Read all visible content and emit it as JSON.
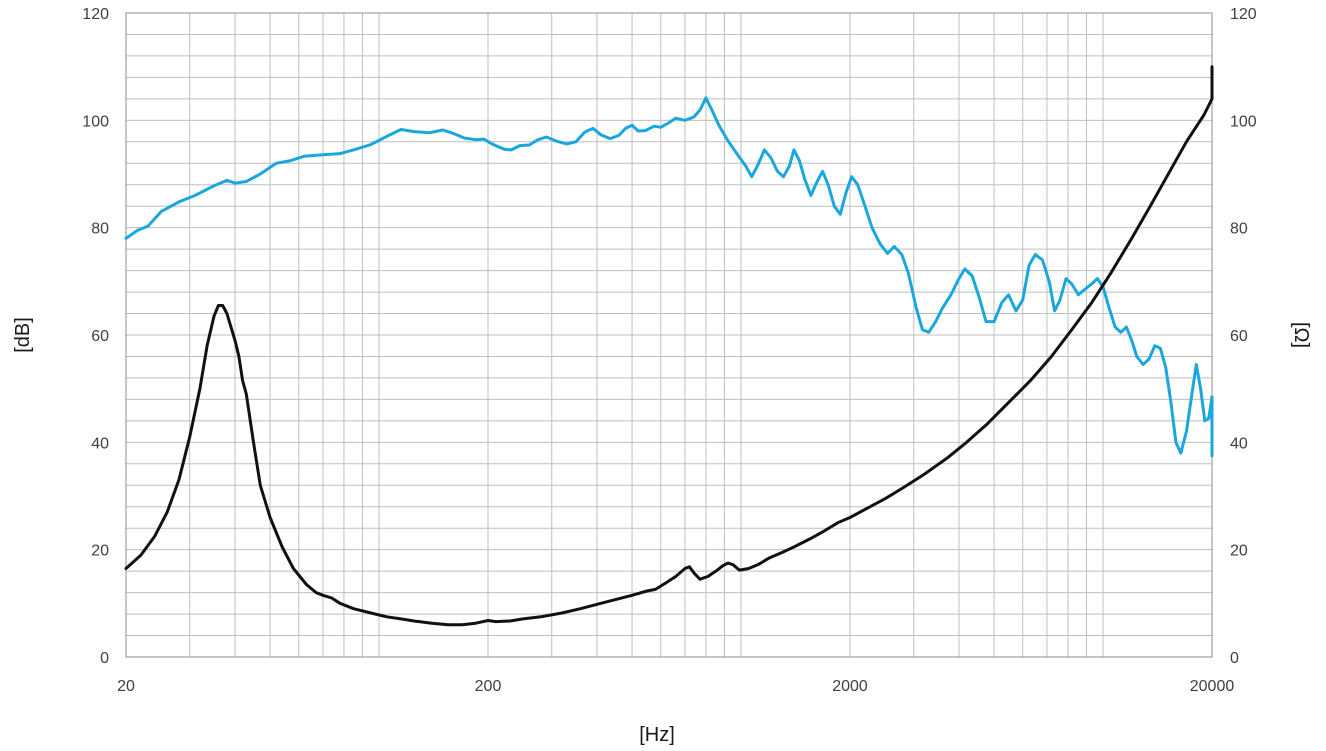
{
  "chart_data": {
    "type": "line",
    "title": "",
    "xlabel": "[Hz]",
    "ylabel_left": "[dB]",
    "ylabel_right": "[Ω]",
    "x_scale": "log",
    "xlim": [
      20,
      20000
    ],
    "ylim_left": [
      0,
      120
    ],
    "ylim_right": [
      0,
      120
    ],
    "x_ticks": [
      20,
      200,
      2000,
      20000
    ],
    "x_tick_labels": [
      "20",
      "200",
      "2000",
      "20000"
    ],
    "y_ticks": [
      0,
      20,
      40,
      60,
      80,
      100,
      120
    ],
    "y_tick_labels": [
      "0",
      "20",
      "40",
      "60",
      "80",
      "100",
      "120"
    ],
    "grid": true,
    "legend": "none",
    "colors": {
      "spl": "#1AA7DD",
      "impedance": "#111111",
      "grid": "#BFBFBF",
      "frame": "#8C8C8C"
    },
    "series": [
      {
        "axis": "left",
        "color": "#1AA7DD",
        "points": [
          [
            20,
            78
          ],
          [
            21.5,
            79.5
          ],
          [
            23,
            80.3
          ],
          [
            25,
            83
          ],
          [
            28,
            84.8
          ],
          [
            31,
            86
          ],
          [
            35,
            87.8
          ],
          [
            38,
            88.8
          ],
          [
            40,
            88.3
          ],
          [
            43,
            88.6
          ],
          [
            47,
            90
          ],
          [
            52,
            92
          ],
          [
            57,
            92.5
          ],
          [
            62,
            93.3
          ],
          [
            70,
            93.6
          ],
          [
            78,
            93.8
          ],
          [
            85,
            94.5
          ],
          [
            95,
            95.5
          ],
          [
            105,
            97
          ],
          [
            115,
            98.3
          ],
          [
            125,
            97.9
          ],
          [
            138,
            97.7
          ],
          [
            150,
            98.2
          ],
          [
            160,
            97.6
          ],
          [
            172,
            96.7
          ],
          [
            185,
            96.4
          ],
          [
            195,
            96.5
          ],
          [
            205,
            95.6
          ],
          [
            215,
            95
          ],
          [
            222,
            94.6
          ],
          [
            232,
            94.5
          ],
          [
            245,
            95.3
          ],
          [
            260,
            95.4
          ],
          [
            275,
            96.4
          ],
          [
            290,
            96.9
          ],
          [
            310,
            96.1
          ],
          [
            330,
            95.6
          ],
          [
            350,
            96
          ],
          [
            370,
            97.8
          ],
          [
            390,
            98.5
          ],
          [
            410,
            97.3
          ],
          [
            435,
            96.6
          ],
          [
            460,
            97.2
          ],
          [
            480,
            98.5
          ],
          [
            500,
            99.1
          ],
          [
            520,
            98
          ],
          [
            545,
            98.1
          ],
          [
            575,
            98.9
          ],
          [
            600,
            98.7
          ],
          [
            630,
            99.5
          ],
          [
            660,
            100.4
          ],
          [
            700,
            100
          ],
          [
            740,
            100.6
          ],
          [
            770,
            101.9
          ],
          [
            800,
            104.2
          ],
          [
            830,
            102
          ],
          [
            870,
            99
          ],
          [
            920,
            96.2
          ],
          [
            980,
            93.5
          ],
          [
            1030,
            91.5
          ],
          [
            1070,
            89.5
          ],
          [
            1110,
            91.5
          ],
          [
            1160,
            94.5
          ],
          [
            1210,
            93
          ],
          [
            1260,
            90.5
          ],
          [
            1310,
            89.5
          ],
          [
            1360,
            91.5
          ],
          [
            1400,
            94.5
          ],
          [
            1450,
            92.5
          ],
          [
            1500,
            89
          ],
          [
            1560,
            86
          ],
          [
            1620,
            88.5
          ],
          [
            1680,
            90.5
          ],
          [
            1740,
            88
          ],
          [
            1810,
            84
          ],
          [
            1880,
            82.5
          ],
          [
            1950,
            86.5
          ],
          [
            2020,
            89.5
          ],
          [
            2100,
            88
          ],
          [
            2200,
            84
          ],
          [
            2300,
            80
          ],
          [
            2420,
            77
          ],
          [
            2540,
            75.2
          ],
          [
            2650,
            76.5
          ],
          [
            2780,
            75
          ],
          [
            2900,
            71.5
          ],
          [
            3050,
            65
          ],
          [
            3170,
            61
          ],
          [
            3300,
            60.5
          ],
          [
            3450,
            62.5
          ],
          [
            3600,
            65
          ],
          [
            3800,
            67.5
          ],
          [
            4000,
            70.5
          ],
          [
            4150,
            72.3
          ],
          [
            4350,
            71
          ],
          [
            4550,
            67
          ],
          [
            4750,
            62.5
          ],
          [
            5000,
            62.5
          ],
          [
            5250,
            66
          ],
          [
            5480,
            67.5
          ],
          [
            5750,
            64.5
          ],
          [
            6000,
            66.5
          ],
          [
            6250,
            73
          ],
          [
            6500,
            75
          ],
          [
            6800,
            74
          ],
          [
            7100,
            70
          ],
          [
            7350,
            64.5
          ],
          [
            7600,
            66.5
          ],
          [
            7900,
            70.5
          ],
          [
            8200,
            69.5
          ],
          [
            8550,
            67.5
          ],
          [
            8900,
            68.5
          ],
          [
            9300,
            69.5
          ],
          [
            9650,
            70.5
          ],
          [
            10000,
            69
          ],
          [
            10400,
            65
          ],
          [
            10800,
            61.5
          ],
          [
            11200,
            60.5
          ],
          [
            11600,
            61.5
          ],
          [
            12000,
            59
          ],
          [
            12400,
            56
          ],
          [
            12900,
            54.5
          ],
          [
            13400,
            55.5
          ],
          [
            13900,
            58
          ],
          [
            14400,
            57.5
          ],
          [
            14900,
            54
          ],
          [
            15400,
            47.5
          ],
          [
            15900,
            40
          ],
          [
            16400,
            38
          ],
          [
            17000,
            42
          ],
          [
            17600,
            49
          ],
          [
            18100,
            54.5
          ],
          [
            18600,
            50
          ],
          [
            19100,
            44
          ],
          [
            19600,
            44.5
          ],
          [
            20000,
            48.5
          ],
          [
            20600,
            47.5
          ],
          [
            21100,
            43
          ],
          [
            21600,
            40
          ],
          [
            22000,
            37.5
          ]
        ]
      },
      {
        "axis": "right",
        "color": "#111111",
        "points": [
          [
            20,
            16.5
          ],
          [
            22,
            19
          ],
          [
            24,
            22.5
          ],
          [
            26,
            27
          ],
          [
            28,
            33
          ],
          [
            30,
            41
          ],
          [
            32,
            50
          ],
          [
            33.5,
            58
          ],
          [
            35,
            63.5
          ],
          [
            36,
            65.5
          ],
          [
            37,
            65.5
          ],
          [
            38,
            64
          ],
          [
            40,
            59
          ],
          [
            41,
            56
          ],
          [
            42,
            51.5
          ],
          [
            43,
            49
          ],
          [
            45,
            40
          ],
          [
            47,
            32
          ],
          [
            50,
            26
          ],
          [
            54,
            20.5
          ],
          [
            58,
            16.5
          ],
          [
            63,
            13.5
          ],
          [
            67,
            12
          ],
          [
            70,
            11.5
          ],
          [
            74,
            11
          ],
          [
            78,
            10
          ],
          [
            85,
            9
          ],
          [
            95,
            8.2
          ],
          [
            105,
            7.5
          ],
          [
            115,
            7.1
          ],
          [
            125,
            6.7
          ],
          [
            140,
            6.3
          ],
          [
            155,
            6
          ],
          [
            170,
            6
          ],
          [
            185,
            6.3
          ],
          [
            200,
            6.8
          ],
          [
            210,
            6.6
          ],
          [
            230,
            6.7
          ],
          [
            250,
            7.1
          ],
          [
            280,
            7.5
          ],
          [
            320,
            8.2
          ],
          [
            360,
            9
          ],
          [
            410,
            10
          ],
          [
            450,
            10.7
          ],
          [
            500,
            11.5
          ],
          [
            550,
            12.3
          ],
          [
            580,
            12.6
          ],
          [
            620,
            13.8
          ],
          [
            660,
            15
          ],
          [
            700,
            16.5
          ],
          [
            720,
            16.8
          ],
          [
            745,
            15.5
          ],
          [
            770,
            14.5
          ],
          [
            810,
            15
          ],
          [
            860,
            16.2
          ],
          [
            890,
            17
          ],
          [
            920,
            17.5
          ],
          [
            950,
            17.2
          ],
          [
            990,
            16.2
          ],
          [
            1050,
            16.5
          ],
          [
            1120,
            17.3
          ],
          [
            1200,
            18.5
          ],
          [
            1300,
            19.5
          ],
          [
            1400,
            20.5
          ],
          [
            1550,
            22
          ],
          [
            1700,
            23.5
          ],
          [
            1850,
            25
          ],
          [
            2000,
            26
          ],
          [
            2200,
            27.5
          ],
          [
            2500,
            29.5
          ],
          [
            2800,
            31.5
          ],
          [
            3200,
            34
          ],
          [
            3700,
            37
          ],
          [
            4200,
            40
          ],
          [
            4800,
            43.5
          ],
          [
            5500,
            47.5
          ],
          [
            6300,
            51.5
          ],
          [
            7200,
            56
          ],
          [
            8200,
            61
          ],
          [
            9300,
            66
          ],
          [
            10500,
            71.5
          ],
          [
            12000,
            78
          ],
          [
            13500,
            84
          ],
          [
            15000,
            89.5
          ],
          [
            17000,
            96
          ],
          [
            19000,
            101
          ],
          [
            20000,
            104
          ],
          [
            20400,
            105.5
          ],
          [
            21000,
            110
          ]
        ]
      }
    ]
  }
}
